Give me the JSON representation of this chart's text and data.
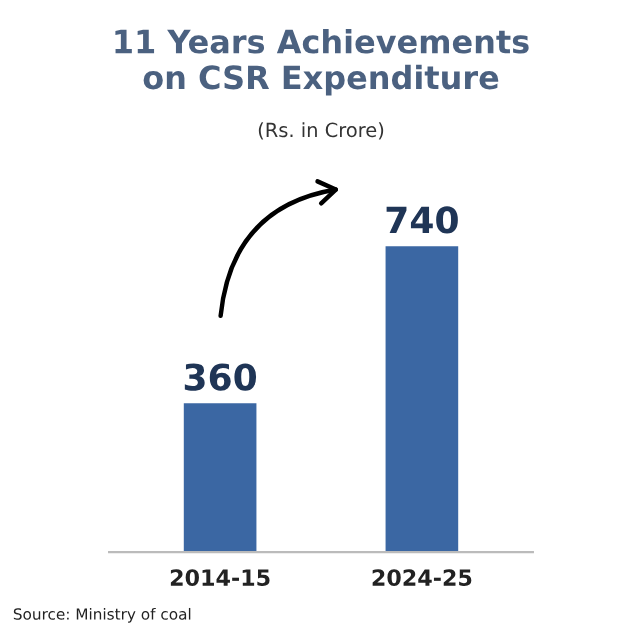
{
  "chart_data": {
    "type": "bar",
    "title": "11 Years Achievements\non CSR Expenditure",
    "subtitle": "(Rs. in Crore)",
    "categories": [
      "2014-15",
      "2024-25"
    ],
    "values": [
      360,
      740
    ],
    "color": "#3b67a3",
    "data_labels": true,
    "grid": false,
    "legend": false,
    "annotations": [
      "Source: Ministry of coal"
    ]
  }
}
